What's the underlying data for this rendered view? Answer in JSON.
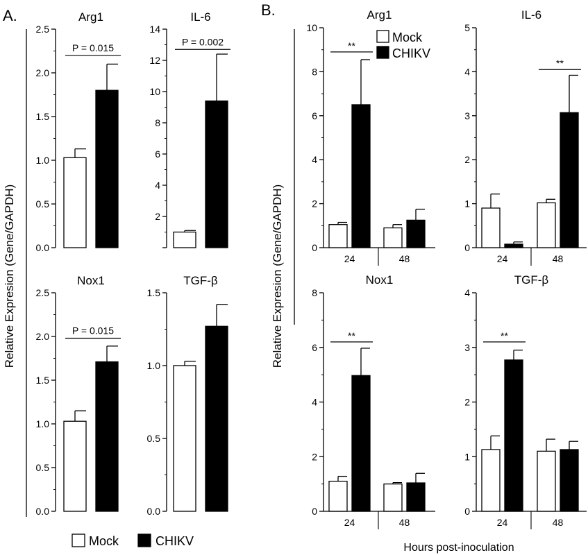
{
  "figure": {
    "panel_a_label": "A.",
    "panel_b_label": "B.",
    "ylabel_a": "Relative Expresion (Gene/GAPDH)",
    "ylabel_b": "Relative Expresion (Gene/GAPDH)",
    "xlabel_b": "Hours post-inoculation",
    "legend_a": [
      "Mock",
      "CHIKV"
    ],
    "legend_b": [
      "Mock",
      "CHIKV"
    ]
  },
  "colors": {
    "mock_fill": "#ffffff",
    "chikv_fill": "#000000",
    "stroke": "#000000"
  },
  "chart_data": [
    {
      "id": "A-Arg1",
      "type": "bar",
      "title": "Arg1",
      "categories": [
        "Mock",
        "CHIKV"
      ],
      "values": [
        1.03,
        1.8
      ],
      "errors": [
        0.1,
        0.3
      ],
      "ylim": [
        0,
        2.5
      ],
      "yticks": [
        0.0,
        0.5,
        1.0,
        1.5,
        2.0,
        2.5
      ],
      "ytick_labels": [
        "0.0",
        "0.5",
        "1.0",
        "1.5",
        "2.0",
        "2.5"
      ],
      "annotation": "P = 0.015",
      "annotation_y": 2.2
    },
    {
      "id": "A-IL6",
      "type": "bar",
      "title": "IL-6",
      "categories": [
        "Mock",
        "CHIKV"
      ],
      "values": [
        1.0,
        9.4
      ],
      "errors": [
        0.1,
        3.0
      ],
      "ylim": [
        0,
        14
      ],
      "yticks": [
        0,
        2,
        4,
        6,
        8,
        10,
        12,
        14
      ],
      "ytick_labels": [
        "",
        "2",
        "4",
        "6",
        "8",
        "10",
        "12",
        "14"
      ],
      "annotation": "P = 0.002",
      "annotation_y": 12.7
    },
    {
      "id": "A-Nox1",
      "type": "bar",
      "title": "Nox1",
      "categories": [
        "Mock",
        "CHIKV"
      ],
      "values": [
        1.03,
        1.71
      ],
      "errors": [
        0.12,
        0.18
      ],
      "ylim": [
        0,
        2.5
      ],
      "yticks": [
        0.0,
        0.5,
        1.0,
        1.5,
        2.0,
        2.5
      ],
      "ytick_labels": [
        "0.0",
        "0.5",
        "1.0",
        "1.5",
        "2.0",
        "2.5"
      ],
      "annotation": "P = 0.015",
      "annotation_y": 1.98
    },
    {
      "id": "A-TGFb",
      "type": "bar",
      "title": "TGF-β",
      "categories": [
        "Mock",
        "CHIKV"
      ],
      "values": [
        1.0,
        1.27
      ],
      "errors": [
        0.03,
        0.15
      ],
      "ylim": [
        0,
        1.5
      ],
      "yticks": [
        0.0,
        0.5,
        1.0,
        1.5
      ],
      "ytick_labels": [
        "0.0",
        "0.5",
        "1.0",
        "1.5"
      ]
    },
    {
      "id": "B-Arg1",
      "type": "bar",
      "title": "Arg1",
      "x": [
        "24",
        "48"
      ],
      "series": [
        {
          "name": "Mock",
          "values": [
            1.05,
            0.9
          ],
          "errors": [
            0.1,
            0.15
          ]
        },
        {
          "name": "CHIKV",
          "values": [
            6.5,
            1.25
          ],
          "errors": [
            2.05,
            0.5
          ]
        }
      ],
      "ylim": [
        0,
        10
      ],
      "yticks": [
        0,
        2,
        4,
        6,
        8,
        10
      ],
      "ytick_labels": [
        "0",
        "2",
        "4",
        "6",
        "8",
        "10"
      ],
      "significance": [
        {
          "group": "24",
          "label": "**",
          "y": 8.9
        }
      ]
    },
    {
      "id": "B-IL6",
      "type": "bar",
      "title": "IL-6",
      "x": [
        "24",
        "48"
      ],
      "series": [
        {
          "name": "Mock",
          "values": [
            0.9,
            1.02
          ],
          "errors": [
            0.32,
            0.08
          ]
        },
        {
          "name": "CHIKV",
          "values": [
            0.08,
            3.07
          ],
          "errors": [
            0.05,
            0.85
          ]
        }
      ],
      "ylim": [
        0,
        5
      ],
      "yticks": [
        0,
        1,
        2,
        3,
        4,
        5
      ],
      "ytick_labels": [
        "0",
        "1",
        "2",
        "3",
        "4",
        "5"
      ],
      "significance": [
        {
          "group": "48",
          "label": "**",
          "y": 4.05
        }
      ]
    },
    {
      "id": "B-Nox1",
      "type": "bar",
      "title": "Nox1",
      "x": [
        "24",
        "48"
      ],
      "series": [
        {
          "name": "Mock",
          "values": [
            1.1,
            1.0
          ],
          "errors": [
            0.18,
            0.05
          ]
        },
        {
          "name": "CHIKV",
          "values": [
            4.97,
            1.04
          ],
          "errors": [
            1.0,
            0.35
          ]
        }
      ],
      "ylim": [
        0,
        8
      ],
      "yticks": [
        0,
        2,
        4,
        6,
        8
      ],
      "ytick_labels": [
        "0",
        "2",
        "4",
        "6",
        "8"
      ],
      "significance": [
        {
          "group": "24",
          "label": "**",
          "y": 6.2
        }
      ]
    },
    {
      "id": "B-TGFb",
      "type": "bar",
      "title": "TGF-β",
      "x": [
        "24",
        "48"
      ],
      "series": [
        {
          "name": "Mock",
          "values": [
            1.13,
            1.1
          ],
          "errors": [
            0.25,
            0.22
          ]
        },
        {
          "name": "CHIKV",
          "values": [
            2.77,
            1.13
          ],
          "errors": [
            0.18,
            0.15
          ]
        }
      ],
      "ylim": [
        0,
        4
      ],
      "yticks": [
        0,
        1,
        2,
        3,
        4
      ],
      "ytick_labels": [
        "0",
        "1",
        "2",
        "3",
        "4"
      ],
      "significance": [
        {
          "group": "24",
          "label": "**",
          "y": 3.1
        }
      ]
    }
  ]
}
